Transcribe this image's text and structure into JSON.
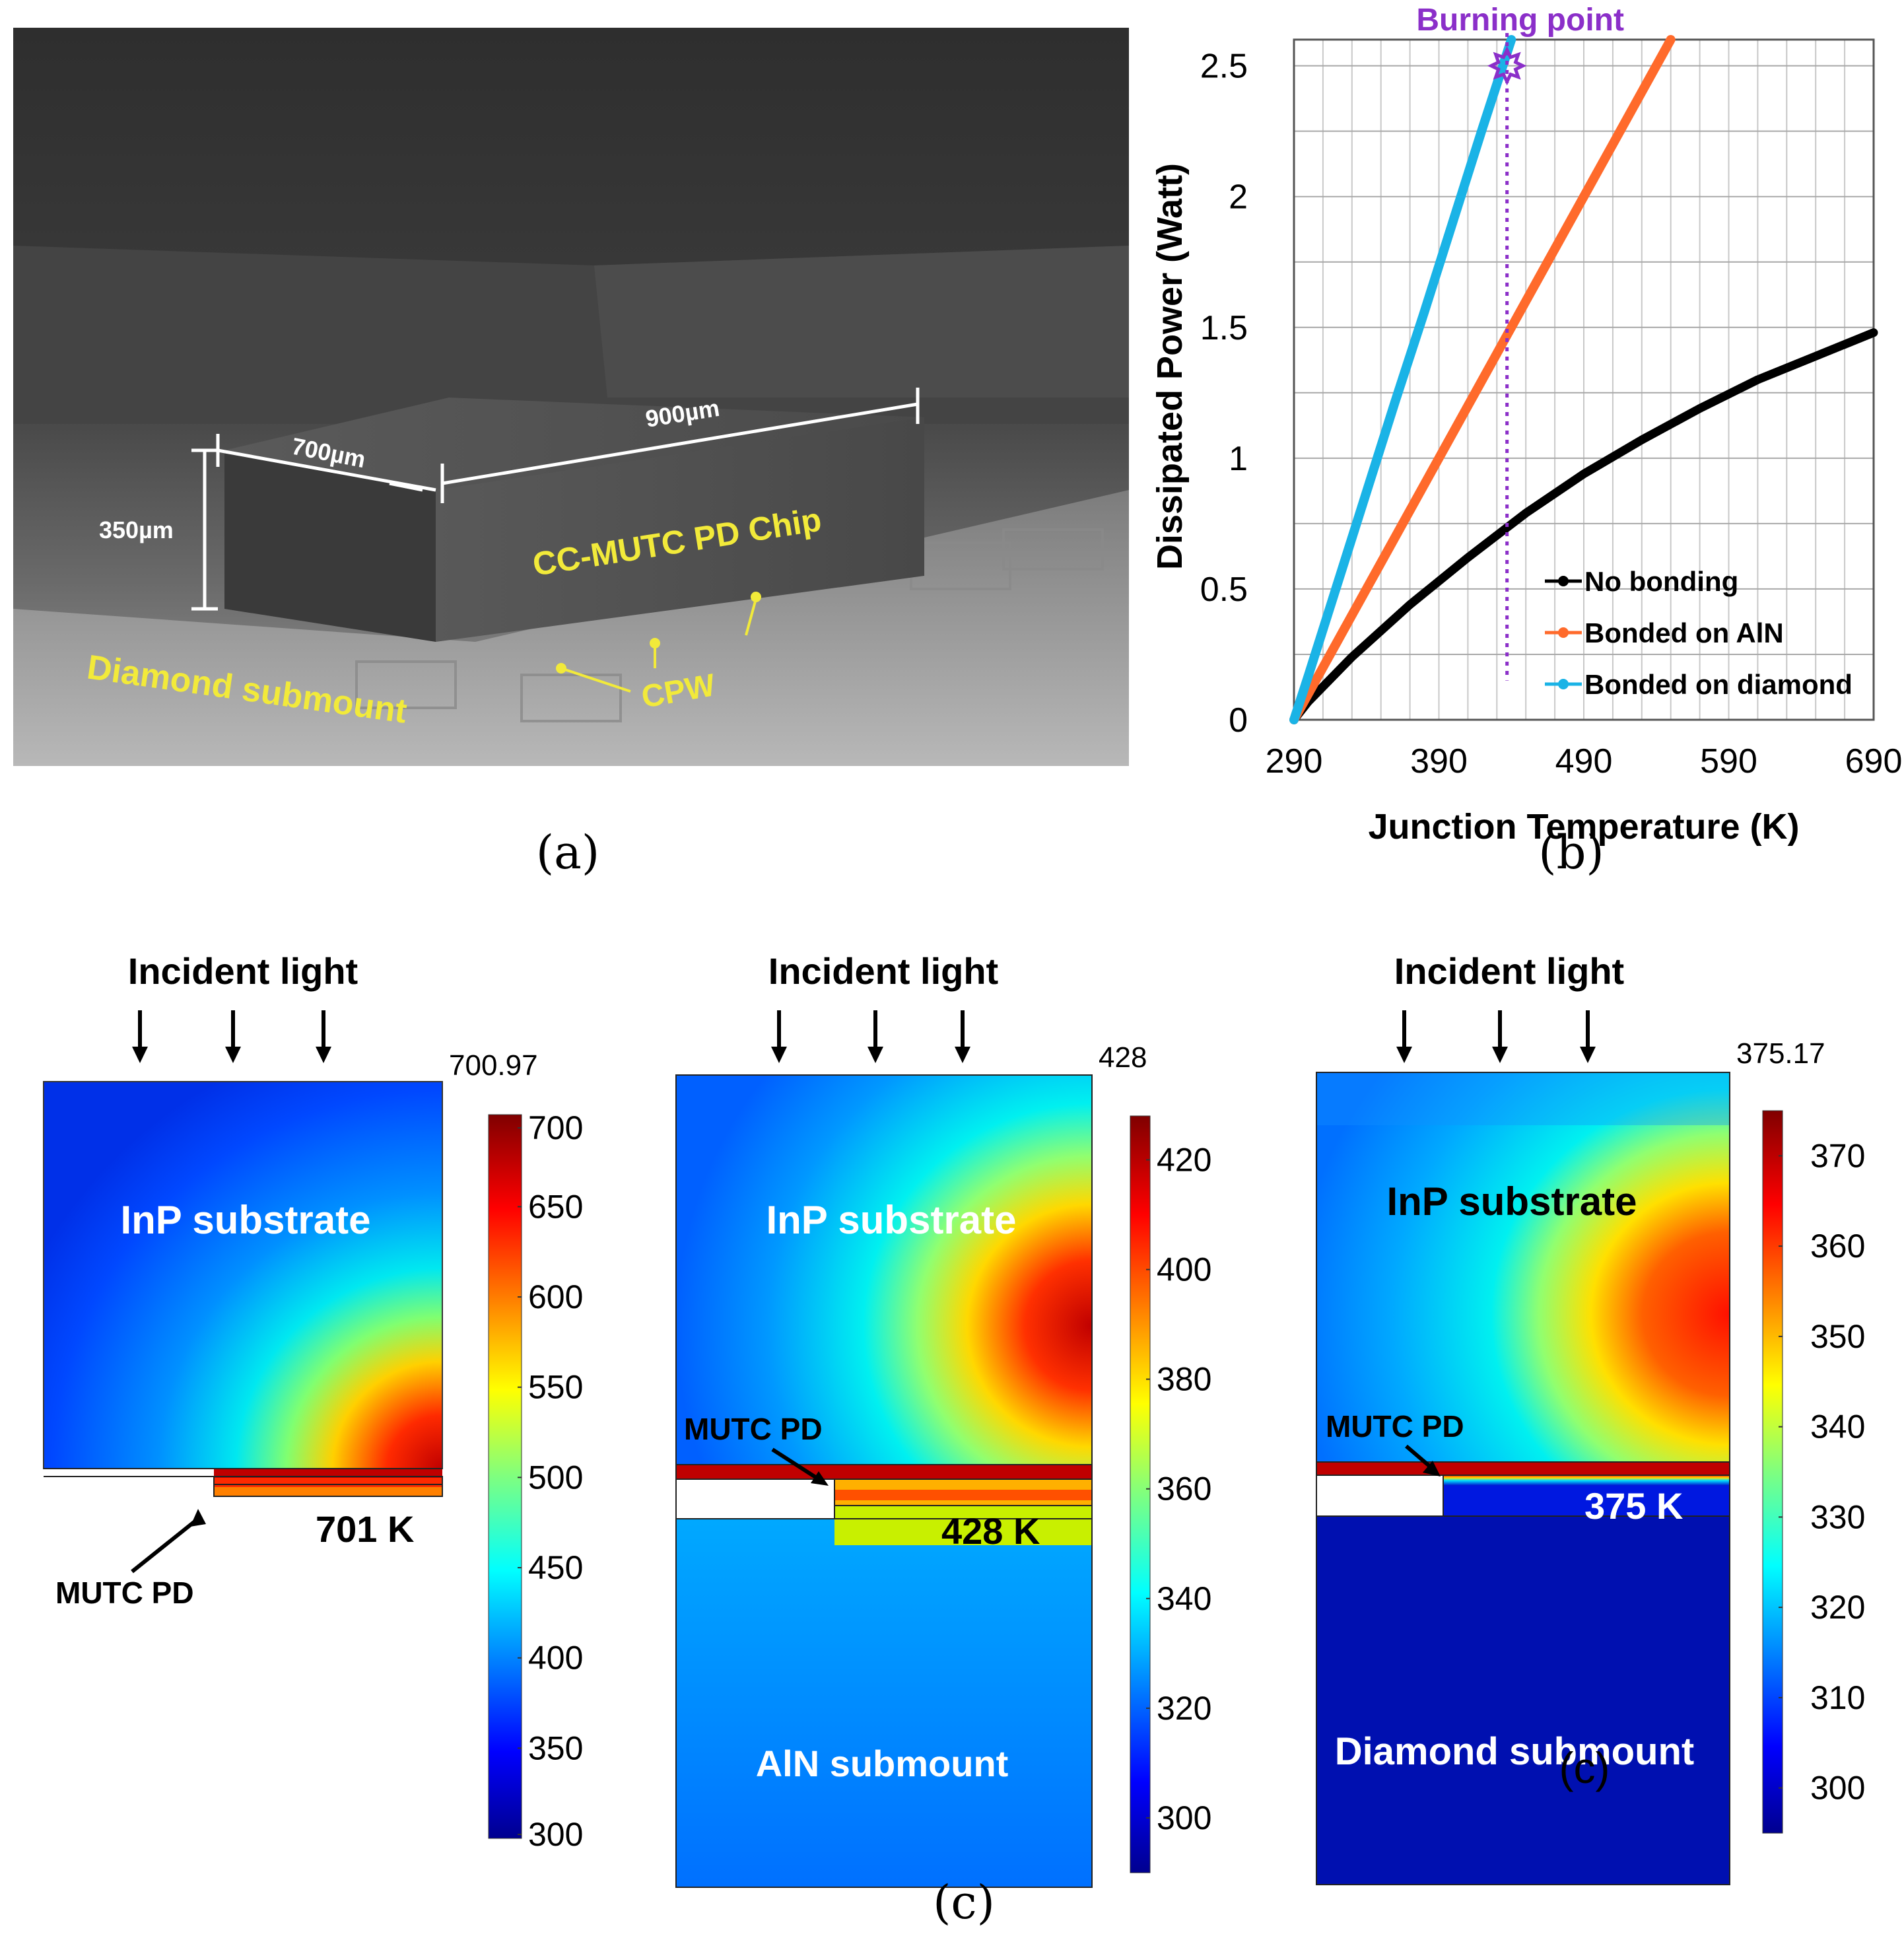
{
  "panel_labels": {
    "a": "(a)",
    "b": "(b)",
    "c": "(c)",
    "c_overlay": "(c)"
  },
  "photo": {
    "dim_900": "900µm",
    "dim_700": "700µm",
    "dim_350": "350µm",
    "chip_label": "CC-MUTC PD Chip",
    "cpw_label": "CPW",
    "submount_label": "Diamond submount",
    "text_color": "#f2ea3a"
  },
  "chart_data": {
    "type": "line",
    "xlabel": "Junction Temperature (K)",
    "ylabel": "Dissipated Power (Watt)",
    "xlim": [
      290,
      690
    ],
    "ylim": [
      0,
      2.6
    ],
    "xticks": [
      "290",
      "390",
      "490",
      "590",
      "690"
    ],
    "yticks": [
      "0",
      "0.5",
      "1",
      "1.5",
      "2",
      "2.5"
    ],
    "grid": true,
    "legend_position": "bottom-right",
    "annotation": {
      "text": "Burning point",
      "x": 437,
      "y": 2.5,
      "color": "#8b2fc9"
    },
    "series": [
      {
        "name": "No bonding",
        "color": "#000000",
        "x": [
          290,
          300,
          330,
          370,
          410,
          450,
          490,
          530,
          570,
          610,
          650,
          690
        ],
        "y": [
          0,
          0.07,
          0.24,
          0.44,
          0.62,
          0.79,
          0.94,
          1.07,
          1.19,
          1.3,
          1.39,
          1.48
        ]
      },
      {
        "name": "Bonded on AlN",
        "color": "#ff6a2b",
        "x": [
          290,
          310,
          330,
          350,
          370,
          390,
          410,
          430,
          450,
          470,
          490,
          510,
          530,
          550
        ],
        "y": [
          0,
          0.2,
          0.4,
          0.6,
          0.8,
          1.0,
          1.2,
          1.4,
          1.6,
          1.8,
          2.0,
          2.2,
          2.4,
          2.6
        ]
      },
      {
        "name": "Bonded on diamond",
        "color": "#1ab3e6",
        "x": [
          290,
          300,
          320,
          340,
          360,
          380,
          400,
          420,
          440
        ],
        "y": [
          0,
          0.17,
          0.52,
          0.87,
          1.22,
          1.56,
          1.91,
          2.26,
          2.6
        ]
      }
    ]
  },
  "sim_panels": [
    {
      "top_label": "Incident light",
      "max_value": "700.97",
      "substrate": "InP substrate",
      "pd_label": "MUTC PD",
      "peak_label": "701 K",
      "submount": "",
      "colorbar_ticks": [
        "700",
        "650",
        "600",
        "550",
        "500",
        "450",
        "400",
        "350",
        "300"
      ],
      "colorbar_range": [
        300,
        701
      ]
    },
    {
      "top_label": "Incident light",
      "max_value": "428",
      "substrate": "InP substrate",
      "pd_label": "MUTC PD",
      "peak_label": "428 K",
      "submount": "AlN submount",
      "colorbar_ticks": [
        "420",
        "400",
        "380",
        "360",
        "340",
        "320",
        "300"
      ],
      "colorbar_range": [
        290,
        428
      ]
    },
    {
      "top_label": "Incident light",
      "max_value": "375.17",
      "substrate": "InP substrate",
      "pd_label": "MUTC PD",
      "peak_label": "375 K",
      "submount": "Diamond submount",
      "colorbar_ticks": [
        "370",
        "360",
        "350",
        "340",
        "330",
        "320",
        "310",
        "300"
      ],
      "colorbar_range": [
        295,
        375
      ]
    }
  ]
}
